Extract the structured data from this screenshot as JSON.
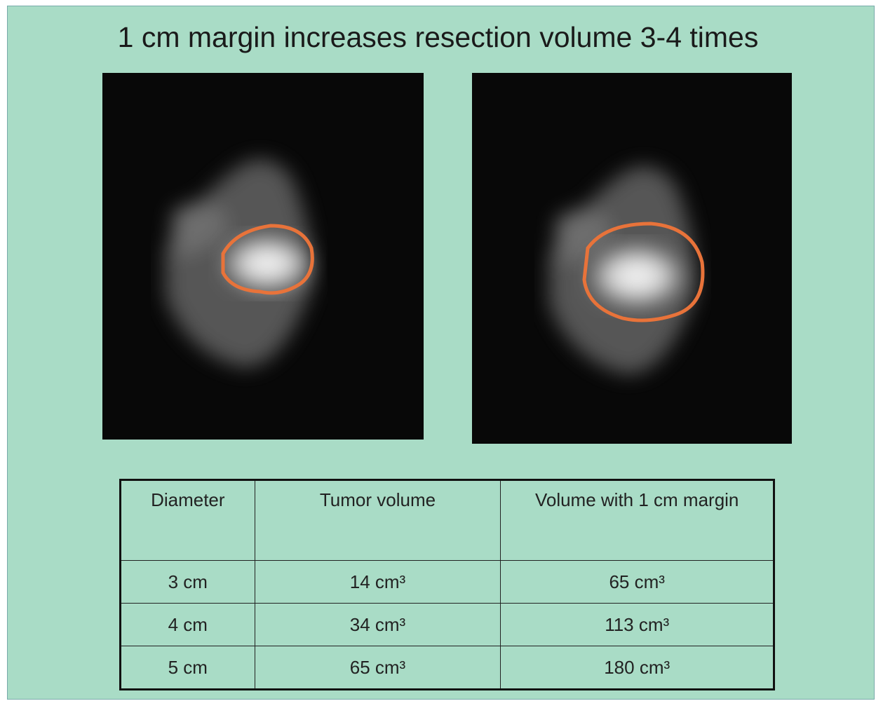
{
  "title": "1 cm margin increases resection volume 3-4 times",
  "table": {
    "header": [
      "Diameter",
      "Tumor volume",
      "Volume with 1 cm margin"
    ],
    "rows": [
      [
        "3 cm",
        "14 cm³",
        "65 cm³"
      ],
      [
        "4 cm",
        "34 cm³",
        "113 cm³"
      ],
      [
        "5 cm",
        "65 cm³",
        "180 cm³"
      ]
    ]
  }
}
